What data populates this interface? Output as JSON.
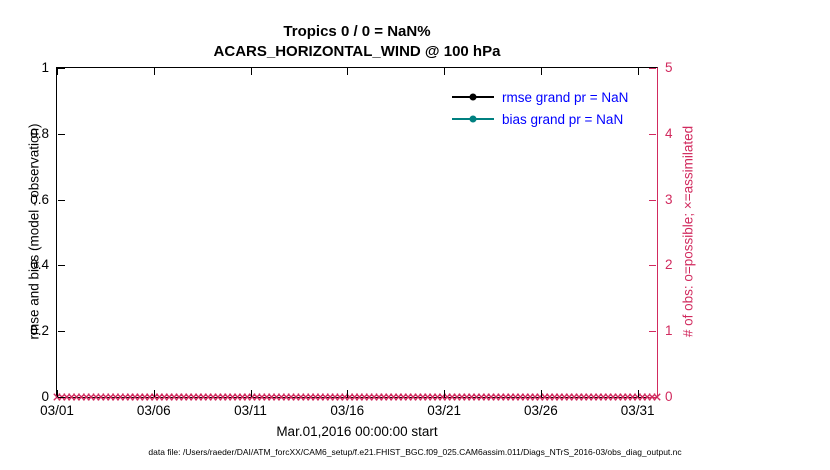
{
  "title": {
    "line1": "Tropics 0 / 0 = NaN%",
    "line2": "ACARS_HORIZONTAL_WIND @ 100 hPa"
  },
  "chart_data": {
    "type": "line",
    "title": "Tropics 0 / 0 = NaN%",
    "subtitle": "ACARS_HORIZONTAL_WIND @ 100 hPa",
    "xlabel": "Mar.01,2016 00:00:00 start",
    "ylabel_left": "rmse and bias (model - observation)",
    "ylabel_right": "# of obs: o=possible; ×=assimilated",
    "x_ticks": [
      "03/01",
      "03/06",
      "03/11",
      "03/16",
      "03/21",
      "03/26",
      "03/31"
    ],
    "x_tick_day_step": 5,
    "x_axis_span_days": 31,
    "y_left_ticks": [
      "0",
      "0.2",
      "0.4",
      "0.6",
      "0.8",
      "1"
    ],
    "y_left_range": [
      0,
      1
    ],
    "y_right_ticks": [
      "0",
      "1",
      "2",
      "3",
      "4",
      "5"
    ],
    "y_right_range": [
      0,
      5
    ],
    "grid": false,
    "legend_position": "top-right",
    "series": [
      {
        "name": "rmse grand pr = NaN",
        "color": "#000000",
        "values": []
      },
      {
        "name": "bias grand pr = NaN",
        "color": "#008080",
        "values": []
      }
    ],
    "assimilated_markers": {
      "symbol": "×",
      "color": "#d12a5e",
      "count": 124,
      "y_value": 0
    }
  },
  "legend": {
    "items": [
      {
        "label": "rmse grand pr = NaN",
        "line_color": "#000000"
      },
      {
        "label": "bias grand pr = NaN",
        "line_color": "#008080"
      }
    ],
    "text_color": "#0000ff"
  },
  "footer": "data file: /Users/raeder/DAI/ATM_forcXX/CAM6_setup/f.e21.FHIST_BGC.f09_025.CAM6assim.011/Diags_NTrS_2016-03/obs_diag_output.nc",
  "colors": {
    "axis": "#000000",
    "right_axis": "#d12a5e",
    "legend_text": "#0000ff",
    "rmse": "#000000",
    "bias": "#008080"
  }
}
